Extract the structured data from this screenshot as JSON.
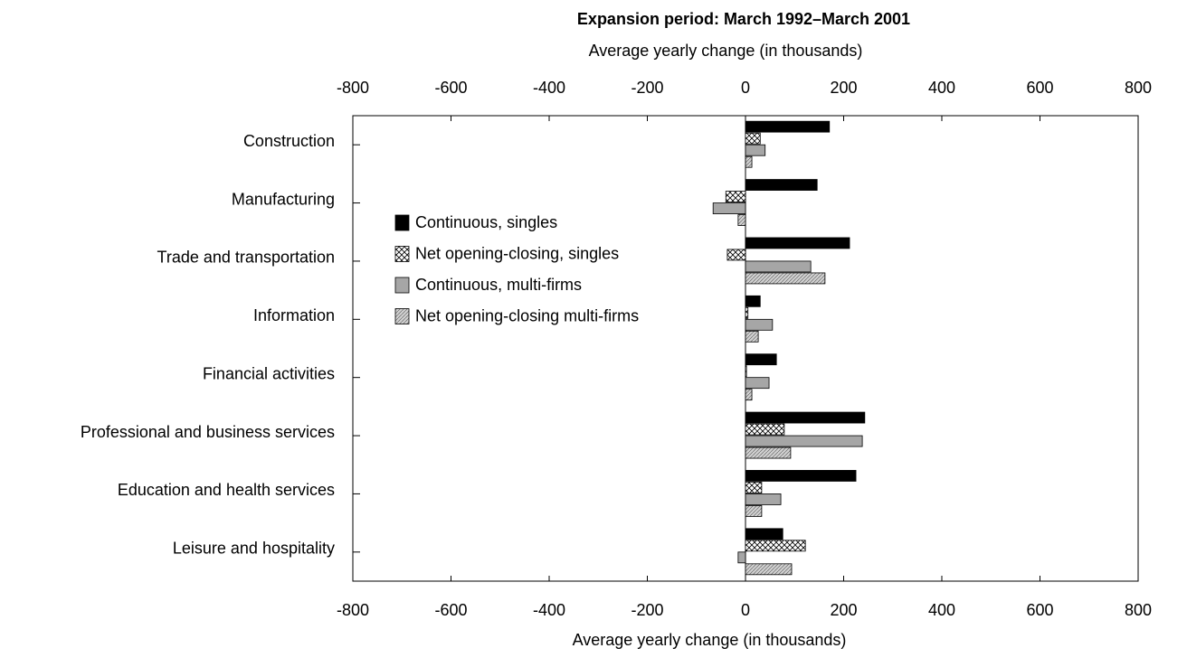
{
  "chart_data": {
    "type": "hbar",
    "title": "Expansion period:  March 1992–March 2001",
    "xlabel": "Average yearly change (in thousands)",
    "categories": [
      "Construction",
      "Manufacturing",
      "Trade and transportation",
      "Information",
      "Financial activities",
      "Professional and business services",
      "Education and health services",
      "Leisure and hospitality"
    ],
    "series": [
      {
        "name": "Continuous, singles",
        "color": "#000000",
        "pattern": "solid",
        "values": [
          171,
          146,
          212,
          30,
          63,
          243,
          225,
          76
        ]
      },
      {
        "name": "Net opening-closing, singles",
        "color": "#ffffff",
        "pattern": "crosshatch",
        "values": [
          30,
          -40,
          -37,
          5,
          2,
          79,
          33,
          122
        ]
      },
      {
        "name": "Continuous, multi-firms",
        "color": "#a6a6a6",
        "pattern": "solid",
        "values": [
          40,
          -66,
          133,
          55,
          48,
          238,
          72,
          -15
        ]
      },
      {
        "name": "Net opening-closing multi-firms",
        "color": "#d0d0d0",
        "pattern": "dots",
        "values": [
          13,
          -15,
          162,
          26,
          13,
          92,
          33,
          94
        ]
      }
    ],
    "xlim": [
      -800,
      800
    ],
    "xticks": [
      -800,
      -600,
      -400,
      -200,
      0,
      200,
      400,
      600,
      800
    ],
    "legend": "left"
  }
}
